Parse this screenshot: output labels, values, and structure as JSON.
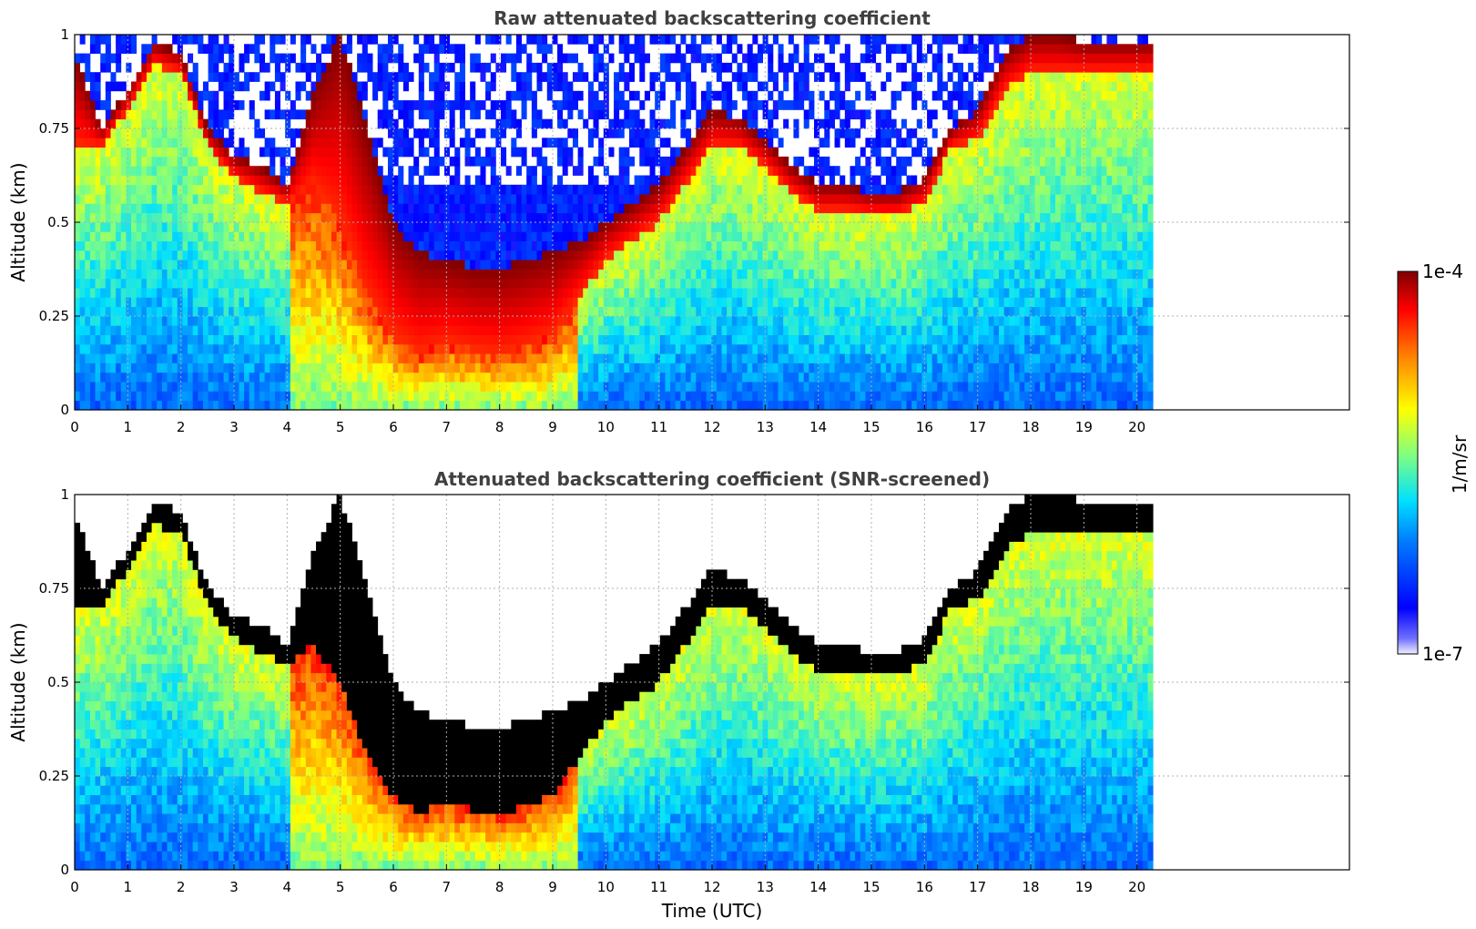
{
  "chart_data": [
    {
      "type": "heatmap",
      "title": "Raw attenuated backscattering coefficient",
      "xlabel": "",
      "ylabel": "Altitude (km)",
      "xlim": [
        0,
        24
      ],
      "ylim": [
        0,
        1
      ],
      "xticks": [
        "0",
        "1",
        "2",
        "3",
        "4",
        "5",
        "6",
        "7",
        "8",
        "9",
        "10",
        "11",
        "12",
        "13",
        "14",
        "15",
        "16",
        "17",
        "18",
        "19",
        "20"
      ],
      "yticks": [
        "0",
        "0.25",
        "0.5",
        "0.75",
        "1"
      ],
      "data_end_time": 20.3,
      "grid": true,
      "noise_altitude": 0.6,
      "layer_top_profile": {
        "x": [
          0.0,
          0.5,
          1.0,
          1.5,
          2.0,
          2.5,
          3.0,
          3.5,
          4.0,
          4.5,
          5.0,
          5.5,
          6.0,
          6.5,
          7.0,
          7.5,
          8.0,
          8.5,
          9.0,
          9.5,
          10.0,
          10.5,
          11.0,
          11.5,
          12.0,
          12.5,
          13.0,
          13.5,
          14.0,
          14.5,
          15.0,
          15.5,
          16.0,
          16.5,
          17.0,
          17.5,
          18.0,
          18.5,
          19.0,
          20.3
        ],
        "y": [
          0.95,
          0.75,
          0.85,
          0.98,
          0.95,
          0.75,
          0.68,
          0.65,
          0.6,
          0.85,
          1.0,
          0.75,
          0.5,
          0.42,
          0.4,
          0.38,
          0.38,
          0.4,
          0.42,
          0.45,
          0.5,
          0.55,
          0.6,
          0.7,
          0.8,
          0.78,
          0.72,
          0.65,
          0.6,
          0.6,
          0.58,
          0.58,
          0.62,
          0.75,
          0.8,
          0.95,
          1.0,
          1.0,
          0.98,
          0.98
        ]
      },
      "layer_bottom_profile": {
        "x": [
          0.0,
          0.5,
          1.0,
          1.5,
          2.0,
          2.5,
          3.0,
          3.5,
          4.0,
          4.5,
          5.0,
          5.5,
          6.0,
          6.5,
          7.0,
          7.5,
          8.0,
          8.5,
          9.0,
          9.5,
          10.0,
          10.5,
          11.0,
          11.5,
          12.0,
          12.5,
          13.0,
          13.5,
          14.0,
          14.5,
          15.0,
          15.5,
          16.0,
          16.5,
          17.0,
          17.5,
          18.0,
          18.5,
          19.0,
          20.3
        ],
        "y": [
          0.7,
          0.7,
          0.8,
          0.92,
          0.9,
          0.7,
          0.62,
          0.58,
          0.55,
          0.6,
          0.5,
          0.3,
          0.2,
          0.15,
          0.18,
          0.16,
          0.15,
          0.17,
          0.2,
          0.3,
          0.4,
          0.45,
          0.5,
          0.6,
          0.7,
          0.7,
          0.65,
          0.58,
          0.53,
          0.53,
          0.52,
          0.52,
          0.55,
          0.7,
          0.72,
          0.85,
          0.9,
          0.9,
          0.9,
          0.9
        ]
      }
    },
    {
      "type": "heatmap",
      "title": "Attenuated backscattering coefficient (SNR-screened)",
      "xlabel": "Time (UTC)",
      "ylabel": "Altitude (km)",
      "xlim": [
        0,
        24
      ],
      "ylim": [
        0,
        1
      ],
      "xticks": [
        "0",
        "1",
        "2",
        "3",
        "4",
        "5",
        "6",
        "7",
        "8",
        "9",
        "10",
        "11",
        "12",
        "13",
        "14",
        "15",
        "16",
        "17",
        "18",
        "19",
        "20"
      ],
      "yticks": [
        "0",
        "0.25",
        "0.5",
        "0.75",
        "1"
      ],
      "data_end_time": 20.3,
      "grid": true,
      "screened_above_layer": true
    }
  ],
  "colorbar": {
    "label": "1/m/sr",
    "max_label": "1e-4",
    "min_label": "1e-7",
    "scale": "log",
    "range": [
      1e-07,
      0.0001
    ],
    "colormap": "jet"
  }
}
